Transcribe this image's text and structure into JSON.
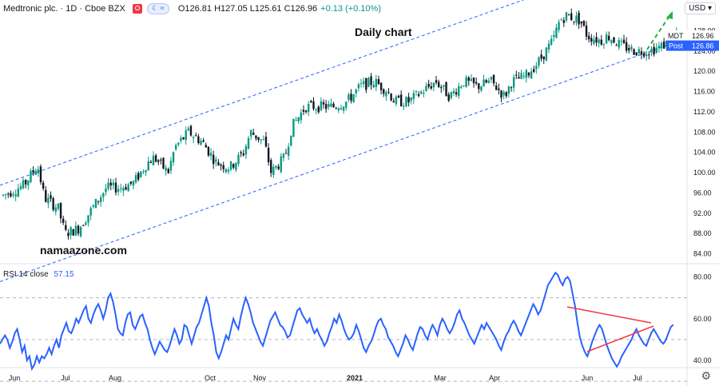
{
  "header": {
    "symbol": "Medtronic plc. · 1D · Cboe BZX",
    "ohlc": "O126.81 H127.05 L125.61 C126.96",
    "change": "+0.13 (+0.10%)",
    "currency": "USD",
    "icons": [
      "flag-icon",
      "moon-icon",
      "settings-gear-icon"
    ]
  },
  "labels": {
    "title": "Daily chart",
    "watermark": "namaazone.com",
    "price_tag_symbol": "MDT",
    "price_tag_value": "126.96",
    "post_label": "Post",
    "post_value": "126.86"
  },
  "rsi": {
    "label": "RSI 14 close",
    "value": "57.15"
  },
  "colors": {
    "up": "#089981",
    "down": "#131722",
    "channel": "#2962ff",
    "rsi_line": "#2962ff",
    "triangle": "#f23645",
    "arrow": "#22b14c",
    "price_tag": "#2962ff"
  },
  "chart_data": [
    {
      "type": "candlestick",
      "symbol": "Medtronic plc.",
      "interval": "1D",
      "exchange": "Cboe BZX",
      "y_ticks": [
        84,
        88,
        92,
        96,
        100,
        104,
        108,
        112,
        116,
        120,
        124,
        128,
        132
      ],
      "y_tick_labels": [
        "84.00",
        "88.00",
        "92.00",
        "96.00",
        "100.00",
        "104.00",
        "108.00",
        "112.00",
        "116.00",
        "120.00",
        "124.00",
        "128.00",
        "132.00"
      ],
      "ylim": [
        82,
        137
      ],
      "x_ticks": [
        "Jun",
        "Jul",
        "Aug",
        "Oct",
        "Nov",
        "2021",
        "Mar",
        "Apr",
        "Jun",
        "Jul"
      ],
      "close_path": [
        [
          0,
          95.5
        ],
        [
          3,
          97.5
        ],
        [
          5,
          101.5
        ],
        [
          6,
          95
        ],
        [
          8,
          93
        ],
        [
          9,
          88
        ],
        [
          11,
          89
        ],
        [
          13,
          93
        ],
        [
          15,
          97
        ],
        [
          17,
          97
        ],
        [
          19,
          98
        ],
        [
          21,
          102
        ],
        [
          22,
          103
        ],
        [
          24,
          100
        ],
        [
          25,
          105
        ],
        [
          27,
          108
        ],
        [
          29,
          106
        ],
        [
          31,
          102
        ],
        [
          33,
          101
        ],
        [
          35,
          104
        ],
        [
          36,
          108
        ],
        [
          38,
          106
        ],
        [
          39,
          100
        ],
        [
          41,
          103
        ],
        [
          42,
          109
        ],
        [
          44,
          113
        ],
        [
          46,
          113
        ],
        [
          48,
          113
        ],
        [
          50,
          114
        ],
        [
          52,
          117
        ],
        [
          54,
          118
        ],
        [
          56,
          116
        ],
        [
          57,
          114
        ],
        [
          59,
          114
        ],
        [
          61,
          116
        ],
        [
          63,
          118
        ],
        [
          65,
          115
        ],
        [
          67,
          118
        ],
        [
          69,
          117
        ],
        [
          71,
          118
        ],
        [
          73,
          115
        ],
        [
          74,
          118
        ],
        [
          76,
          119
        ],
        [
          78,
          122
        ],
        [
          80,
          126
        ],
        [
          81,
          130
        ],
        [
          82,
          131
        ],
        [
          84,
          130
        ],
        [
          85,
          127
        ],
        [
          87,
          126
        ],
        [
          88,
          127
        ],
        [
          90,
          125
        ],
        [
          92,
          124
        ],
        [
          94,
          124
        ],
        [
          96,
          125
        ],
        [
          98,
          126.96
        ]
      ],
      "channel": {
        "lower": [
          [
            0,
            78.5
          ],
          [
            100,
            126.5
          ]
        ],
        "upper": [
          [
            0,
            97.5
          ],
          [
            100,
            145.5
          ]
        ]
      },
      "last_close": 126.96,
      "post_close": 126.86
    },
    {
      "type": "line",
      "name": "RSI 14 close",
      "y_ticks": [
        40,
        60,
        80
      ],
      "y_tick_labels": [
        "40.00",
        "60.00",
        "80.00"
      ],
      "ylim": [
        30,
        85
      ],
      "reference_levels": [
        30,
        50,
        70
      ],
      "values": [
        48,
        50,
        52,
        50,
        46,
        49,
        53,
        55,
        50,
        44,
        47,
        40,
        42,
        36,
        38,
        42,
        39,
        42,
        41,
        43,
        46,
        43,
        47,
        50,
        46,
        52,
        55,
        58,
        54,
        53,
        56,
        60,
        58,
        61,
        64,
        66,
        60,
        58,
        62,
        65,
        67,
        64,
        60,
        64,
        70,
        72,
        68,
        62,
        55,
        53,
        52,
        58,
        62,
        63,
        57,
        55,
        58,
        61,
        62,
        58,
        55,
        50,
        46,
        43,
        46,
        49,
        47,
        45,
        44,
        47,
        51,
        55,
        52,
        48,
        50,
        57,
        56,
        52,
        48,
        52,
        56,
        58,
        62,
        66,
        70,
        66,
        58,
        52,
        44,
        41,
        44,
        48,
        52,
        50,
        55,
        60,
        57,
        55,
        61,
        66,
        70,
        67,
        63,
        58,
        55,
        52,
        49,
        47,
        51,
        55,
        59,
        61,
        63,
        60,
        57,
        56,
        54,
        51,
        52,
        56,
        60,
        64,
        65,
        62,
        60,
        58,
        60,
        56,
        53,
        55,
        52,
        50,
        47,
        49,
        53,
        56,
        60,
        58,
        62,
        59,
        55,
        52,
        50,
        51,
        53,
        57,
        54,
        50,
        46,
        44,
        47,
        49,
        52,
        56,
        59,
        60,
        57,
        55,
        51,
        49,
        47,
        44,
        42,
        45,
        48,
        52,
        50,
        47,
        45,
        49,
        53,
        56,
        55,
        52,
        50,
        54,
        57,
        55,
        52,
        57,
        60,
        58,
        55,
        53,
        55,
        58,
        62,
        64,
        60,
        58,
        55,
        52,
        50,
        48,
        51,
        54,
        57,
        55,
        58,
        56,
        54,
        52,
        50,
        47,
        45,
        49,
        52,
        54,
        57,
        59,
        57,
        54,
        52,
        55,
        58,
        61,
        64,
        67,
        65,
        62,
        64,
        68,
        72,
        76,
        78,
        80,
        82,
        81,
        78,
        76,
        79,
        80,
        78,
        72,
        66,
        58,
        51,
        47,
        44,
        42,
        45,
        49,
        52,
        55,
        57,
        55,
        51,
        47,
        44,
        41,
        39,
        37,
        39,
        42,
        44,
        46,
        48,
        50,
        53,
        55,
        52,
        50,
        48,
        47,
        50,
        53,
        55,
        53,
        51,
        49,
        48,
        50,
        53,
        56,
        57.15
      ],
      "last_value": 57.15
    }
  ]
}
